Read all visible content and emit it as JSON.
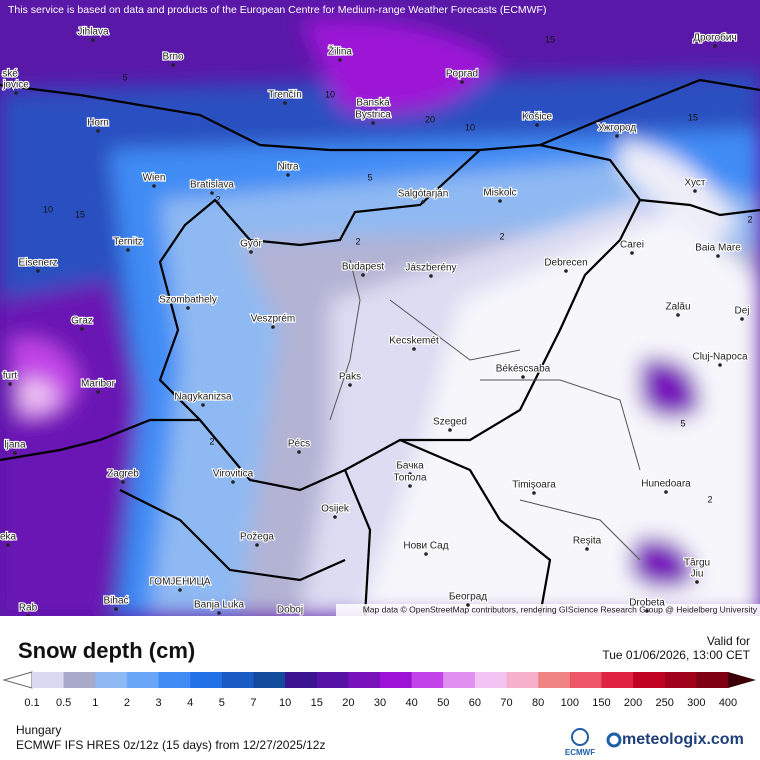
{
  "header": {
    "notice": "This service is based on data and products of the European Centre for Medium-range Weather Forecasts (ECMWF)"
  },
  "map": {
    "cities": [
      "Jihlava",
      "Brno",
      "Žilina",
      "Poprad",
      "Дрогобич",
      "ské",
      "jovice",
      "Trenčín",
      "Banská",
      "Bystrica",
      "Košice",
      "Ужгород",
      "Horn",
      "Nitra",
      "Wien",
      "Bratislava",
      "Salgótarján",
      "Miskolc",
      "Хуст",
      "Ternitz",
      "Győr",
      "Budapest",
      "Jászberény",
      "Debrecen",
      "Carei",
      "Baia Mare",
      "Eisenerz",
      "Szombathely",
      "Zalău",
      "Dej",
      "Graz",
      "Veszprém",
      "Kecskemét",
      "Cluj-Napoca",
      "furt",
      "Maribor",
      "Paks",
      "Békéscsaba",
      "Nagykanizsa",
      "ljana",
      "Pécs",
      "Szeged",
      "Zagreb",
      "Virovitica",
      "Бачка",
      "Топола",
      "Timişoara",
      "Hunedoara",
      "Osijek",
      "Požega",
      "Нови Сад",
      "Reşita",
      "Târgu",
      "Jiu",
      "eka",
      "Bihać",
      "ГОМЈЕНИЦА",
      "Banja Luka",
      "Doboj",
      "Београд",
      "Drobeta",
      "Rab"
    ],
    "contour_labels": [
      "5",
      "15",
      "10",
      "20",
      "10",
      "15",
      "5",
      "2",
      "10",
      "15",
      "2",
      "2",
      "2",
      "5",
      "2",
      "2"
    ],
    "attribution": "Map data © OpenStreetMap contributors, rendering GIScience Research Group @ Heidelberg University"
  },
  "legend": {
    "title": "Snow depth (cm)",
    "valid_label": "Valid for",
    "valid_time": "Tue 01/06/2026, 13:00 CET",
    "ticks": [
      "0.1",
      "0.5",
      "1",
      "2",
      "3",
      "4",
      "5",
      "7",
      "10",
      "15",
      "20",
      "30",
      "40",
      "50",
      "60",
      "70",
      "80",
      "100",
      "150",
      "200",
      "250",
      "300",
      "400"
    ],
    "colors": [
      "#d9d9f2",
      "#a9a9c9",
      "#8fb9f2",
      "#6aa6f7",
      "#3f8cf5",
      "#2371e6",
      "#1a5cc4",
      "#124a9c",
      "#3b1290",
      "#5812a3",
      "#7812bb",
      "#9d12d6",
      "#c244e8",
      "#e290f0",
      "#f1c4f3",
      "#f7b0c9",
      "#f08484",
      "#ee5566",
      "#df2343",
      "#c20424",
      "#a1021c",
      "#7e0012"
    ]
  },
  "footer": {
    "region": "Hungary",
    "model": "ECMWF IFS HRES 0z/12z (15 days) from 12/27/2025/12z",
    "ecmwf_logo": "ECMWF",
    "brand": "meteologix.com"
  }
}
